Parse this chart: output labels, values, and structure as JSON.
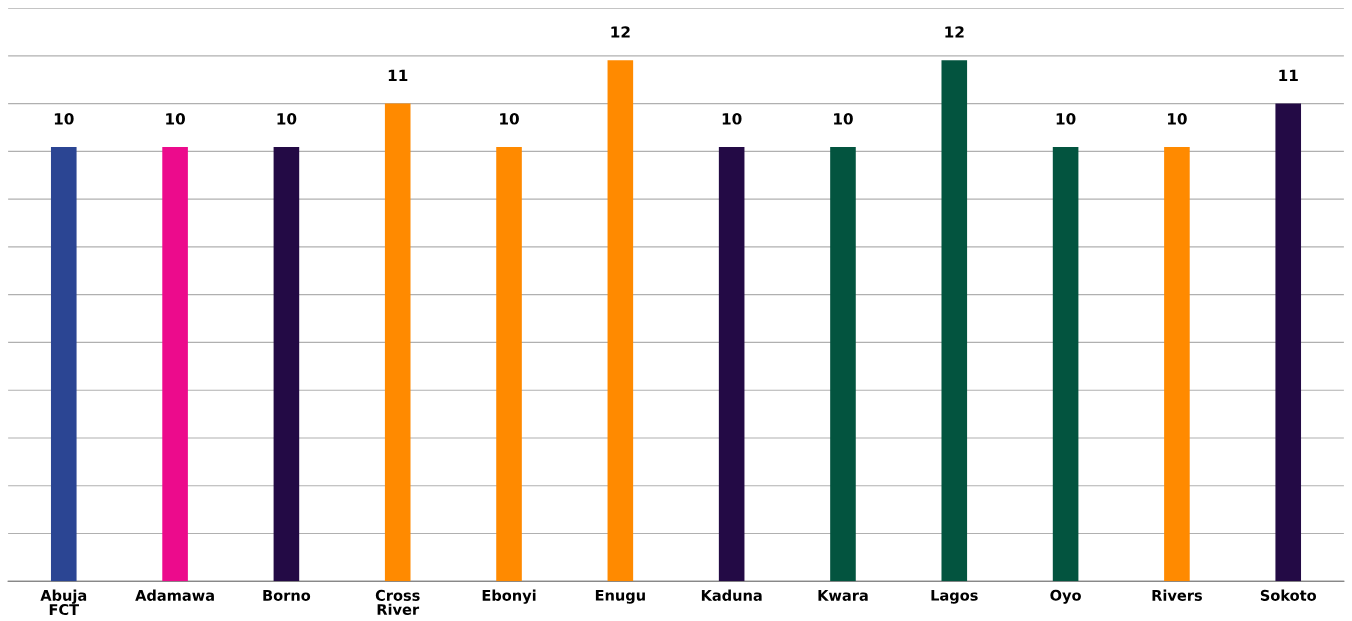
{
  "chart_data": {
    "type": "bar",
    "categories": [
      "Abuja\nFCT",
      "Adamawa",
      "Borno",
      "Cross\nRiver",
      "Ebonyi",
      "Enugu",
      "Kaduna",
      "Kwara",
      "Lagos",
      "Oyo",
      "Rivers",
      "Sokoto"
    ],
    "values": [
      10,
      10,
      10,
      11,
      10,
      12,
      10,
      10,
      12,
      10,
      10,
      11
    ],
    "colors": [
      "#2b4593",
      "#ec0b8c",
      "#230a45",
      "#ff8a00",
      "#ff8a00",
      "#ff8a00",
      "#230a45",
      "#03543f",
      "#03543f",
      "#03543f",
      "#ff8a00",
      "#230a45"
    ],
    "ylim": [
      0,
      13.2
    ],
    "yticks": [
      {
        "value": 0,
        "label": null
      },
      {
        "value": 1.1,
        "label": null
      },
      {
        "value": 2.2,
        "label": null
      },
      {
        "value": 3.3,
        "label": null
      },
      {
        "value": 4.4,
        "label": null
      },
      {
        "value": 5.5,
        "label": null
      },
      {
        "value": 6.6,
        "label": null
      },
      {
        "value": 7.7,
        "label": null
      },
      {
        "value": 8.8,
        "label": null
      },
      {
        "value": 9.9,
        "label": null
      },
      {
        "value": 11.0,
        "label": null
      },
      {
        "value": 12.1,
        "label": null
      },
      {
        "value": 13.2,
        "label": null
      }
    ],
    "grid": "y",
    "data_labels": true,
    "tick_labels": "x"
  }
}
